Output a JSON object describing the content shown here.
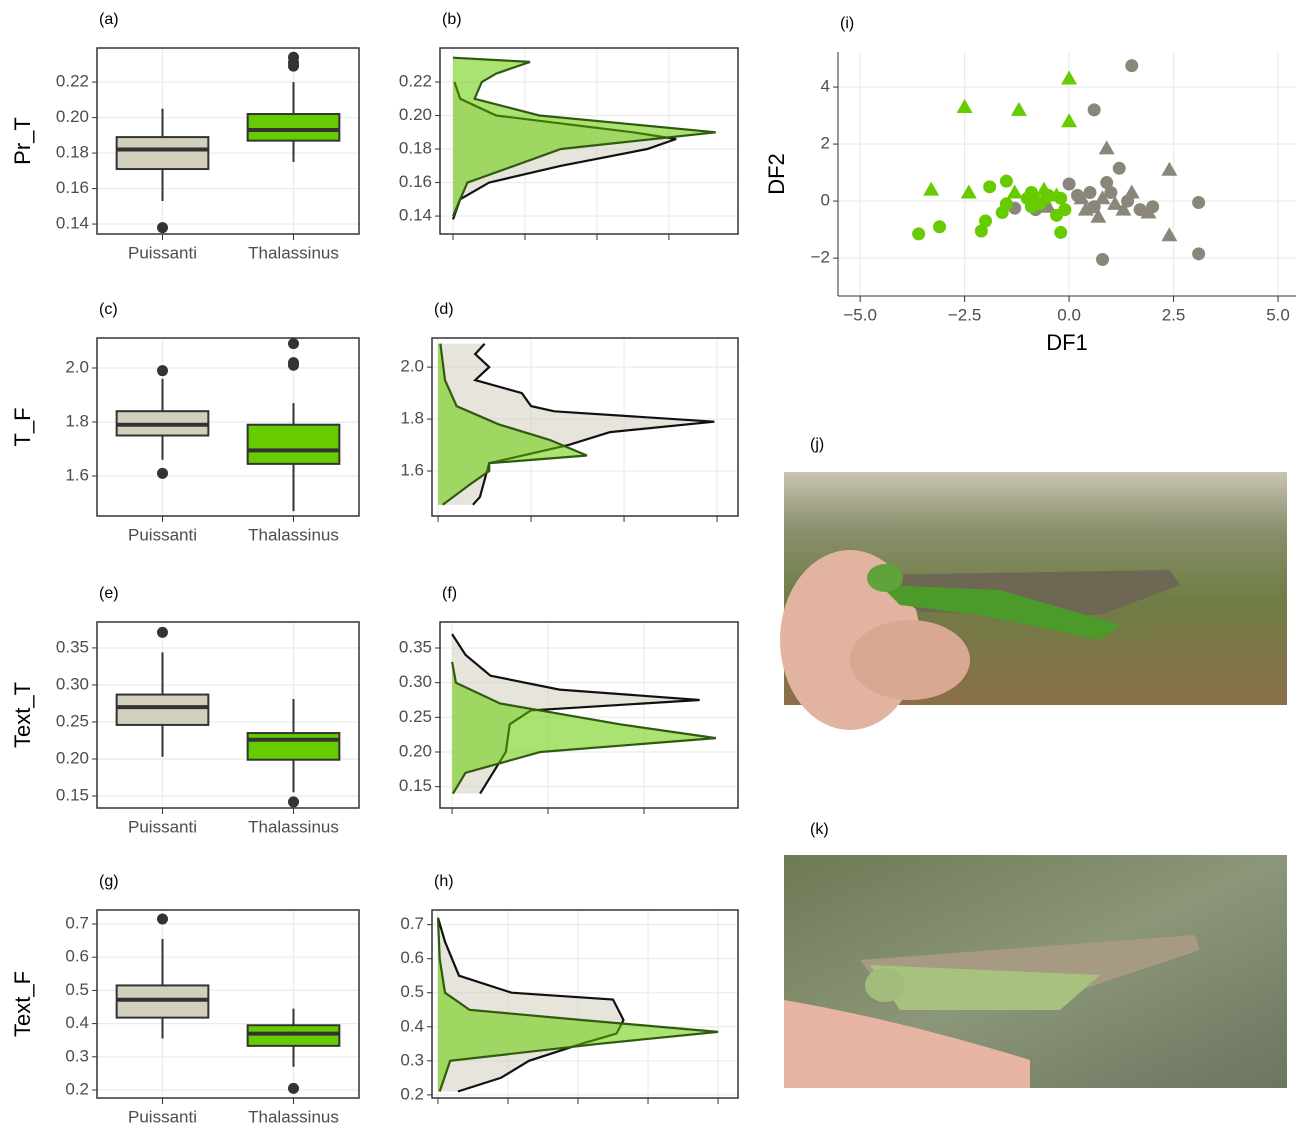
{
  "chart_data": [
    {
      "type": "box",
      "tag": "(a)",
      "ylabel": "Pr_T",
      "categories": [
        "Puissanti",
        "Thalassinus"
      ],
      "ylim": [
        0.1344,
        0.2392
      ],
      "yticks": [
        0.14,
        0.16,
        0.18,
        {
          "value": 0.2,
          "label": "0.20"
        },
        0.22
      ],
      "boxes": [
        {
          "color": "#d3cfbd",
          "min": 0.153,
          "q1": 0.171,
          "median": 0.182,
          "q3": 0.189,
          "max": 0.205,
          "outliers": [
            0.138
          ]
        },
        {
          "color": "#66cc00",
          "min": 0.175,
          "q1": 0.187,
          "median": 0.193,
          "q3": 0.202,
          "max": 0.22,
          "outliers": [
            0.229,
            0.231,
            0.234
          ]
        }
      ]
    },
    {
      "type": "density",
      "tag": "(b)",
      "ylim": [
        0.1293,
        0.2403
      ],
      "yticks": [
        0.14,
        0.16,
        0.18,
        {
          "value": 0.2,
          "label": "0.20"
        },
        0.22
      ],
      "xlim": [
        -1.81,
        39.6
      ],
      "xticks": [
        0,
        10,
        20,
        30
      ],
      "series": [
        {
          "color": "#d3cfbd",
          "x": [
            0.138,
            0.15,
            0.16,
            0.17,
            0.18,
            0.186,
            0.19,
            0.2,
            0.21,
            0.22
          ],
          "values": [
            0,
            1,
            5,
            15,
            27,
            31,
            25,
            6,
            1,
            0.2
          ]
        },
        {
          "color": "#66cc00",
          "x": [
            0.14,
            0.16,
            0.18,
            0.19,
            0.2,
            0.21,
            0.22,
            0.225,
            0.232,
            0.2345
          ],
          "values": [
            0,
            2,
            15,
            36.5,
            12,
            3,
            4,
            6,
            10.7,
            0
          ]
        }
      ]
    },
    {
      "type": "box",
      "tag": "(c)",
      "ylabel": "T_F",
      "categories": [
        "Puissanti",
        "Thalassinus"
      ],
      "ylim": [
        1.452,
        2.111
      ],
      "yticks": [
        1.6,
        1.8,
        {
          "value": 2,
          "label": "2.0"
        }
      ],
      "boxes": [
        {
          "color": "#d3cfbd",
          "min": 1.66,
          "q1": 1.75,
          "median": 1.79,
          "q3": 1.84,
          "max": 1.96,
          "outliers": [
            1.61,
            1.99
          ]
        },
        {
          "color": "#66cc00",
          "min": 1.47,
          "q1": 1.645,
          "median": 1.695,
          "q3": 1.79,
          "max": 1.87,
          "outliers": [
            2.01,
            2.02,
            2.09
          ]
        }
      ]
    },
    {
      "type": "density",
      "tag": "(d)",
      "ylim": [
        1.427,
        2.112
      ],
      "yticks": [
        1.6,
        1.8,
        {
          "value": 2,
          "label": "2.0"
        }
      ],
      "xlim": [
        -0.13,
        6.45
      ],
      "xticks": [
        0,
        2,
        4,
        6
      ],
      "series": [
        {
          "color": "#d3cfbd",
          "x": [
            1.47,
            1.5,
            1.63,
            1.7,
            1.75,
            1.79,
            1.83,
            1.85,
            1.9,
            1.95,
            2.0,
            2.05,
            2.09
          ],
          "values": [
            0.75,
            0.9,
            1.1,
            2.8,
            3.7,
            5.94,
            2.5,
            2.0,
            1.8,
            0.8,
            1.1,
            0.8,
            1.0
          ]
        },
        {
          "color": "#66cc00",
          "x": [
            1.47,
            1.55,
            1.6,
            1.63,
            1.66,
            1.72,
            1.78,
            1.85,
            1.95,
            2.09
          ],
          "values": [
            0.1,
            0.7,
            1.1,
            1.1,
            3.2,
            2.4,
            1.3,
            0.4,
            0.15,
            0.05
          ]
        }
      ]
    },
    {
      "type": "box",
      "tag": "(e)",
      "ylabel": "Text_T",
      "categories": [
        "Puissanti",
        "Thalassinus"
      ],
      "ylim": [
        0.1338,
        0.385
      ],
      "yticks": [
        0.15,
        {
          "value": 0.2,
          "label": "0.20"
        },
        0.25,
        {
          "value": 0.3,
          "label": "0.30"
        },
        0.35
      ],
      "boxes": [
        {
          "color": "#d3cfbd",
          "min": 0.203,
          "q1": 0.246,
          "median": 0.27,
          "q3": 0.287,
          "max": 0.344,
          "outliers": [
            0.371
          ]
        },
        {
          "color": "#66cc00",
          "min": 0.155,
          "q1": 0.199,
          "median": 0.226,
          "q3": 0.235,
          "max": 0.281,
          "outliers": [
            0.142
          ]
        }
      ]
    },
    {
      "type": "density",
      "tag": "(f)",
      "ylim": [
        0.1192,
        0.3875
      ],
      "yticks": [
        0.15,
        {
          "value": 0.2,
          "label": "0.20"
        },
        0.25,
        {
          "value": 0.3,
          "label": "0.30"
        },
        0.35
      ],
      "xlim": [
        -0.63,
        14.9
      ],
      "xticks": [
        0,
        5,
        10
      ],
      "series": [
        {
          "color": "#d3cfbd",
          "x": [
            0.14,
            0.2,
            0.24,
            0.26,
            0.275,
            0.29,
            0.31,
            0.34,
            0.37
          ],
          "values": [
            1.46,
            2.8,
            3.0,
            4.1,
            12.9,
            5.6,
            2.0,
            0.7,
            0
          ]
        },
        {
          "color": "#66cc00",
          "x": [
            0.14,
            0.17,
            0.2,
            0.22,
            0.24,
            0.27,
            0.3,
            0.33
          ],
          "values": [
            0.05,
            0.7,
            4.6,
            13.75,
            8.75,
            2.5,
            0.2,
            0
          ]
        }
      ]
    },
    {
      "type": "box",
      "tag": "(g)",
      "ylabel": "Text_F",
      "categories": [
        "Puissanti",
        "Thalassinus"
      ],
      "ylim": [
        0.1759,
        0.7422
      ],
      "yticks": [
        0.2,
        0.3,
        0.4,
        0.5,
        0.6,
        0.7
      ],
      "boxes": [
        {
          "color": "#d3cfbd",
          "min": 0.355,
          "q1": 0.418,
          "median": 0.472,
          "q3": 0.515,
          "max": 0.655,
          "outliers": [
            0.715
          ]
        },
        {
          "color": "#66cc00",
          "min": 0.27,
          "q1": 0.333,
          "median": 0.37,
          "q3": 0.395,
          "max": 0.445,
          "outliers": [
            0.205
          ]
        }
      ]
    },
    {
      "type": "density",
      "tag": "(h)",
      "ylim": [
        0.1908,
        0.743
      ],
      "yticks": [
        0.2,
        0.3,
        0.4,
        0.5,
        0.6,
        0.7
      ],
      "xlim": [
        -0.17,
        8.57
      ],
      "xticks": [
        0,
        2,
        4,
        6,
        8
      ],
      "series": [
        {
          "color": "#d3cfbd",
          "x": [
            0.21,
            0.25,
            0.3,
            0.35,
            0.38,
            0.42,
            0.48,
            0.5,
            0.55,
            0.65,
            0.72
          ],
          "values": [
            0.57,
            1.8,
            2.6,
            4.1,
            5.1,
            5.3,
            5.0,
            2.1,
            0.6,
            0.2,
            0
          ]
        },
        {
          "color": "#66cc00",
          "x": [
            0.21,
            0.3,
            0.35,
            0.385,
            0.42,
            0.45,
            0.5,
            0.6,
            0.72
          ],
          "values": [
            0.05,
            0.35,
            4.6,
            8.0,
            4.1,
            0.9,
            0.2,
            0.05,
            0
          ]
        }
      ]
    },
    {
      "type": "scatter",
      "tag": "(i)",
      "xlabel": "DF1",
      "ylabel": "DF2",
      "xlim": [
        -5.53,
        5.43
      ],
      "xticks": [
        {
          "value": -5,
          "label": "−5.0"
        },
        {
          "value": -2.5,
          "label": "−2.5"
        },
        {
          "value": 0,
          "label": "0.0"
        },
        2.5,
        {
          "value": 5,
          "label": "5.0"
        }
      ],
      "ylim": [
        -3.33,
        5.23
      ],
      "yticks": [
        {
          "value": -2,
          "label": "−2"
        },
        0,
        2,
        4
      ],
      "series": [
        {
          "color": "#8a877a",
          "shape": "circle",
          "x": [
            1.5,
            0.6,
            1.2,
            0.8,
            3.1,
            3.1,
            2.0,
            0.9,
            0.2,
            0.5,
            0.0,
            -1.3,
            -0.8,
            0.6,
            1.0,
            1.4,
            1.7
          ],
          "values": [
            4.75,
            3.2,
            1.15,
            -2.05,
            -1.85,
            -0.05,
            -0.2,
            0.65,
            0.2,
            0.3,
            0.6,
            -0.25,
            -0.3,
            -0.2,
            0.3,
            0.0,
            -0.3
          ]
        },
        {
          "color": "#8a877a",
          "shape": "triangle",
          "x": [
            0.9,
            2.4,
            2.4,
            1.5,
            0.7,
            0.4,
            1.1,
            1.9,
            -0.5,
            0.3,
            1.3,
            0.8
          ],
          "values": [
            1.85,
            1.1,
            -1.2,
            0.3,
            -0.55,
            -0.3,
            -0.1,
            -0.4,
            -0.2,
            0.1,
            -0.3,
            0.1
          ]
        },
        {
          "color": "#66cc00",
          "shape": "circle",
          "x": [
            -3.6,
            -3.1,
            -2.1,
            -2.0,
            -1.9,
            -1.6,
            -1.5,
            -1.5,
            -1.0,
            -0.9,
            -0.8,
            -0.9,
            -0.3,
            -0.2,
            -0.5,
            -0.7,
            -0.2,
            -0.1
          ],
          "values": [
            -1.15,
            -0.9,
            -1.05,
            -0.7,
            0.5,
            -0.4,
            -0.1,
            0.7,
            0.1,
            0.3,
            0.0,
            -0.2,
            -0.5,
            -1.1,
            0.2,
            -0.1,
            0.1,
            -0.3
          ]
        },
        {
          "color": "#66cc00",
          "shape": "triangle",
          "x": [
            -2.5,
            -1.2,
            0.0,
            0.0,
            -3.3,
            -2.4,
            -1.3,
            -0.6,
            -0.3,
            -0.6
          ],
          "values": [
            3.3,
            3.2,
            4.3,
            2.8,
            0.4,
            0.3,
            0.3,
            0.4,
            0.2,
            0.1
          ]
        }
      ]
    }
  ],
  "photos": [
    {
      "label": "(j)"
    },
    {
      "label": "(k)"
    }
  ]
}
